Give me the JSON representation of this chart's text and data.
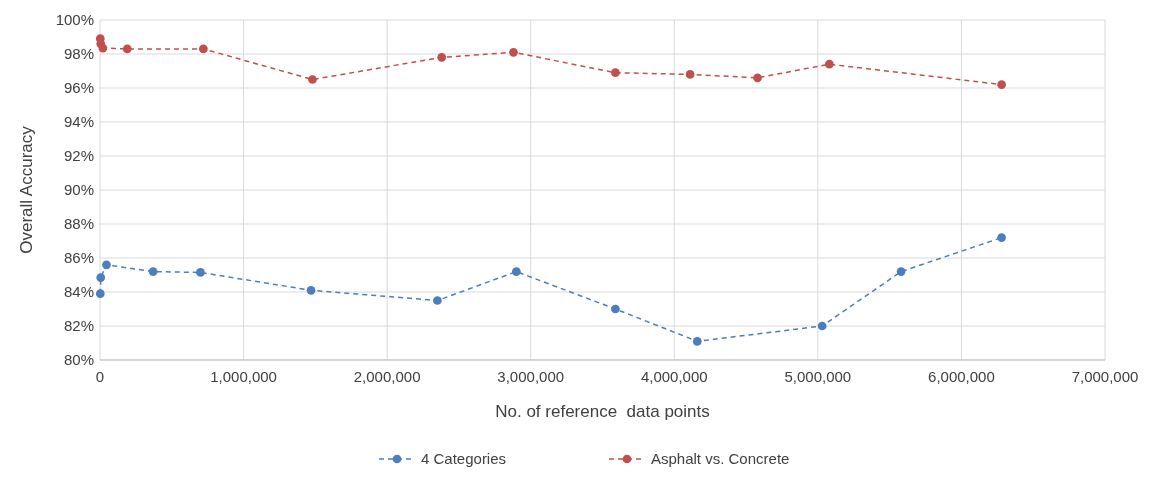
{
  "chart_data": {
    "type": "line",
    "xlabel": "No. of reference  data points",
    "ylabel": "Overall Accuracy",
    "xlim": [
      0,
      7000000
    ],
    "xticks": [
      {
        "value": 0,
        "label": "0"
      },
      {
        "value": 1000000,
        "label": "1,000,000"
      },
      {
        "value": 2000000,
        "label": "2,000,000"
      },
      {
        "value": 3000000,
        "label": "3,000,000"
      },
      {
        "value": 4000000,
        "label": "4,000,000"
      },
      {
        "value": 5000000,
        "label": "5,000,000"
      },
      {
        "value": 6000000,
        "label": "6,000,000"
      },
      {
        "value": 7000000,
        "label": "7,000,000"
      }
    ],
    "ylim": [
      80,
      100
    ],
    "yticks": [
      {
        "value": 80,
        "label": "80%"
      },
      {
        "value": 82,
        "label": "82%"
      },
      {
        "value": 84,
        "label": "84%"
      },
      {
        "value": 86,
        "label": "86%"
      },
      {
        "value": 88,
        "label": "88%"
      },
      {
        "value": 90,
        "label": "90%"
      },
      {
        "value": 92,
        "label": "92%"
      },
      {
        "value": 94,
        "label": "94%"
      },
      {
        "value": 96,
        "label": "96%"
      },
      {
        "value": 98,
        "label": "98%"
      },
      {
        "value": 100,
        "label": "100%"
      }
    ],
    "grid": true,
    "legend": "bottom",
    "marker": "circle",
    "line_style": "dashed",
    "series": [
      {
        "name": "4 Categories",
        "color": "#4a7ebf",
        "x": [
          2000,
          5000,
          45000,
          370000,
          700000,
          1470000,
          2350000,
          2900000,
          3590000,
          4160000,
          5030000,
          5580000,
          6280000
        ],
        "values": [
          83.9,
          84.85,
          85.6,
          85.2,
          85.15,
          84.1,
          83.5,
          85.2,
          83.0,
          81.1,
          82.0,
          85.2,
          87.2
        ]
      },
      {
        "name": "Asphalt vs. Concrete",
        "color": "#c0504d",
        "x": [
          2000,
          5000,
          20000,
          190000,
          720000,
          1480000,
          2380000,
          2880000,
          3590000,
          4110000,
          4580000,
          5080000,
          6280000
        ],
        "values": [
          98.9,
          98.6,
          98.35,
          98.3,
          98.3,
          96.5,
          97.8,
          98.1,
          96.9,
          96.8,
          96.6,
          97.4,
          96.2
        ]
      }
    ]
  }
}
